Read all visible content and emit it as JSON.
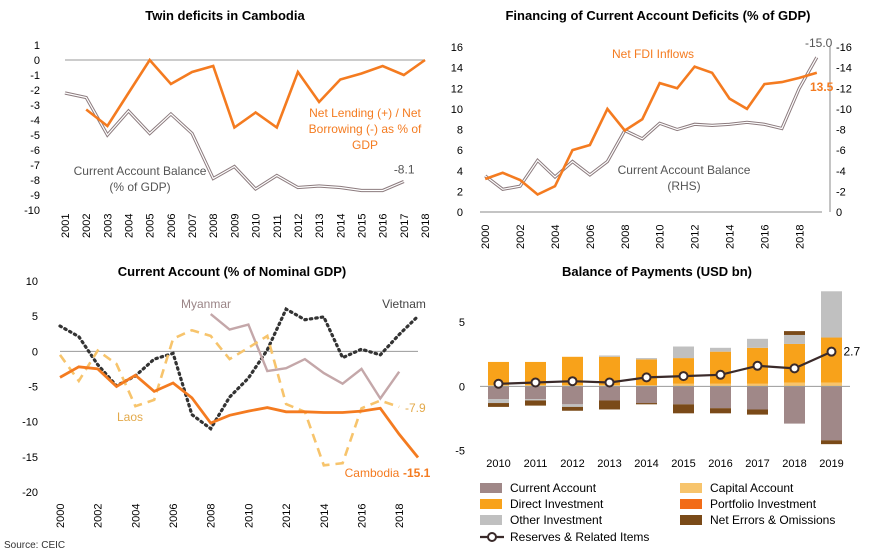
{
  "source": "Source: CEIC",
  "colors": {
    "orange": "#f47b20",
    "grey_line": "#8c7b7e",
    "dark_dotted": "#333333",
    "myanmar": "#c4a7a9",
    "laos": "#f7c46c",
    "ca_bar": "#a08888",
    "capital_bar": "#f7c46c",
    "fdi_bar": "#f8a21a",
    "portfolio_bar": "#f26c18",
    "other_bar": "#c0c0c0",
    "errors_bar": "#7a4a18",
    "reserves_line": "#3a2a2a"
  },
  "chart_data": [
    {
      "type": "line",
      "title": "Twin deficits in Cambodia",
      "x": [
        2001,
        2002,
        2003,
        2004,
        2005,
        2006,
        2007,
        2008,
        2009,
        2010,
        2011,
        2012,
        2013,
        2014,
        2015,
        2016,
        2017,
        2018
      ],
      "ylim": [
        -10,
        1
      ],
      "yticks": [
        1,
        0,
        -1,
        -2,
        -3,
        -4,
        -5,
        -6,
        -7,
        -8,
        -9,
        -10
      ],
      "series": [
        {
          "name": "Current Account Balance (% of GDP)",
          "label_lines": [
            "Current Account Balance",
            "(% of GDP)"
          ],
          "values": [
            -2.2,
            -2.5,
            -5.0,
            -3.4,
            -4.9,
            -3.6,
            -4.9,
            -7.9,
            -7.1,
            -8.6,
            -7.7,
            -8.5,
            -8.4,
            -8.5,
            -8.7,
            -8.7,
            -8.1,
            null
          ],
          "end_label": "-8.1"
        },
        {
          "name": "Net Lending (+) / Net Borrowing (-) as % of GDP",
          "label_lines": [
            "Net Lending (+) / Net",
            "Borrowing (-) as % of",
            "GDP"
          ],
          "values": [
            null,
            -3.3,
            -4.4,
            -2.2,
            0.0,
            -1.6,
            -0.8,
            -0.4,
            -4.5,
            -3.5,
            -4.5,
            -0.8,
            -2.8,
            -1.3,
            -0.9,
            -0.4,
            -1.0,
            0.0
          ]
        }
      ]
    },
    {
      "type": "line",
      "title": "Financing of Current Account Deficits (% of GDP)",
      "x": [
        2000,
        2001,
        2002,
        2003,
        2004,
        2005,
        2006,
        2007,
        2008,
        2009,
        2010,
        2011,
        2012,
        2013,
        2014,
        2015,
        2016,
        2017,
        2018,
        2019
      ],
      "xticks": [
        2000,
        2002,
        2004,
        2006,
        2008,
        2010,
        2012,
        2014,
        2016,
        2018
      ],
      "ylim": [
        0,
        16
      ],
      "yticks": [
        0,
        2,
        4,
        6,
        8,
        10,
        12,
        14,
        16
      ],
      "ylim_right": [
        0,
        -16
      ],
      "yticks_right": [
        0,
        -2,
        -4,
        -6,
        -8,
        -10,
        -12,
        -14,
        -16
      ],
      "series": [
        {
          "name": "Net FDI Inflows",
          "axis": "left",
          "values": [
            3.2,
            3.8,
            3.1,
            1.7,
            2.5,
            6.0,
            6.5,
            10.0,
            7.9,
            9.0,
            12.5,
            12.0,
            14.1,
            13.5,
            11.0,
            10.0,
            12.4,
            12.6,
            13.0,
            13.5
          ],
          "end_label": "13.5"
        },
        {
          "name": "Current Account Balance (RHS)",
          "axis": "right",
          "label_lines": [
            "Current Account Balance",
            "(RHS)"
          ],
          "values": [
            -3.5,
            -2.2,
            -2.5,
            -5.0,
            -3.4,
            -4.9,
            -3.6,
            -4.9,
            -7.9,
            -7.1,
            -8.6,
            -8.0,
            -8.5,
            -8.4,
            -8.5,
            -8.7,
            -8.5,
            -8.1,
            -12.0,
            -15.0
          ],
          "end_label": "-15.0"
        }
      ]
    },
    {
      "type": "line",
      "title": "Current Account (% of Nominal GDP)",
      "x": [
        2000,
        2001,
        2002,
        2003,
        2004,
        2005,
        2006,
        2007,
        2008,
        2009,
        2010,
        2011,
        2012,
        2013,
        2014,
        2015,
        2016,
        2017,
        2018,
        2019
      ],
      "xticks": [
        2000,
        2002,
        2004,
        2006,
        2008,
        2010,
        2012,
        2014,
        2016,
        2018
      ],
      "ylim": [
        -20,
        10
      ],
      "yticks": [
        10,
        5,
        0,
        -5,
        -10,
        -15,
        -20
      ],
      "series": [
        {
          "name": "Vietnam",
          "values": [
            3.6,
            2.1,
            -1.9,
            -4.9,
            -3.5,
            -1.1,
            -0.3,
            -9.0,
            -11.0,
            -6.5,
            -3.8,
            0.2,
            6.0,
            4.5,
            4.9,
            -0.9,
            0.3,
            -0.5,
            2.4,
            5.0
          ]
        },
        {
          "name": "Myanmar",
          "values": [
            null,
            null,
            null,
            null,
            null,
            null,
            null,
            null,
            5.3,
            3.1,
            3.8,
            -2.8,
            -2.4,
            -1.1,
            -3.1,
            -4.6,
            -2.5,
            -6.7,
            -2.9,
            null
          ]
        },
        {
          "name": "Laos",
          "values": [
            -0.5,
            -4.2,
            0.1,
            -1.8,
            -7.8,
            -6.9,
            1.8,
            3.0,
            2.2,
            -1.1,
            0.5,
            2.2,
            -7.5,
            -8.6,
            -16.2,
            -15.9,
            -8.1,
            -7.0,
            -7.9,
            null
          ],
          "end_label": "-7.9"
        },
        {
          "name": "Cambodia",
          "values": [
            -3.7,
            -2.2,
            -2.5,
            -5.0,
            -3.4,
            -5.7,
            -4.5,
            -6.6,
            -10.2,
            -9.1,
            -8.5,
            -8.0,
            -8.6,
            -8.6,
            -8.7,
            -8.7,
            -8.5,
            -8.1,
            -11.8,
            -15.1
          ],
          "end_label": "-15.1"
        }
      ]
    },
    {
      "type": "bar",
      "title": "Balance of Payments (USD bn)",
      "categories": [
        "2010",
        "2011",
        "2012",
        "2013",
        "2014",
        "2015",
        "2016",
        "2017",
        "2018",
        "2019"
      ],
      "ylim": [
        -5.5,
        7.5
      ],
      "yticks": [
        5,
        0,
        -5
      ],
      "series": [
        {
          "name": "Current Account",
          "values": [
            -1.0,
            -1.0,
            -1.4,
            -1.1,
            -1.3,
            -1.4,
            -1.7,
            -1.8,
            -2.9,
            -4.2
          ]
        },
        {
          "name": "Capital Account",
          "values": [
            0.1,
            0.1,
            0.1,
            0.1,
            0.1,
            0.2,
            0.2,
            0.2,
            0.3,
            0.3
          ]
        },
        {
          "name": "Direct Investment",
          "values": [
            1.8,
            1.8,
            2.2,
            2.2,
            2.0,
            2.0,
            2.5,
            2.8,
            3.0,
            3.5
          ]
        },
        {
          "name": "Portfolio Investment",
          "values": [
            0.0,
            0.0,
            0.0,
            0.0,
            0.0,
            0.0,
            0.0,
            0.0,
            0.0,
            0.0
          ]
        },
        {
          "name": "Other Investment",
          "values": [
            -0.3,
            -0.1,
            -0.2,
            0.1,
            0.1,
            0.9,
            0.3,
            0.7,
            0.7,
            3.6
          ]
        },
        {
          "name": "Net Errors & Omissions",
          "values": [
            -0.3,
            -0.4,
            -0.3,
            -0.7,
            -0.1,
            -0.7,
            -0.4,
            -0.4,
            0.3,
            -0.3
          ]
        },
        {
          "name": "Reserves & Related Items",
          "type": "line",
          "values": [
            0.2,
            0.3,
            0.4,
            0.3,
            0.7,
            0.8,
            0.9,
            1.6,
            1.4,
            2.7
          ],
          "end_label": "2.7"
        }
      ]
    }
  ]
}
